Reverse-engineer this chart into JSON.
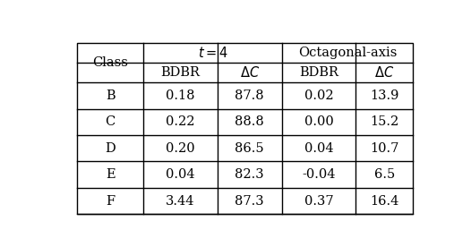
{
  "col_headers_row1_class": "Class",
  "col_headers_row1_t4": "$t = 4$",
  "col_headers_row1_oct": "Octagonal-axis",
  "col_headers_row2": [
    "BDBR",
    "$\\Delta C$",
    "BDBR",
    "$\\Delta C$"
  ],
  "rows": [
    [
      "B",
      "0.18",
      "87.8",
      "0.02",
      "13.9"
    ],
    [
      "C",
      "0.22",
      "88.8",
      "0.00",
      "15.2"
    ],
    [
      "D",
      "0.20",
      "86.5",
      "0.04",
      "10.7"
    ],
    [
      "E",
      "0.04",
      "82.3",
      "-0.04",
      "6.5"
    ],
    [
      "F",
      "3.44",
      "87.3",
      "0.37",
      "16.4"
    ]
  ],
  "bg_color": "#ffffff",
  "text_color": "#000000",
  "line_color": "#000000",
  "font_size": 10.5
}
